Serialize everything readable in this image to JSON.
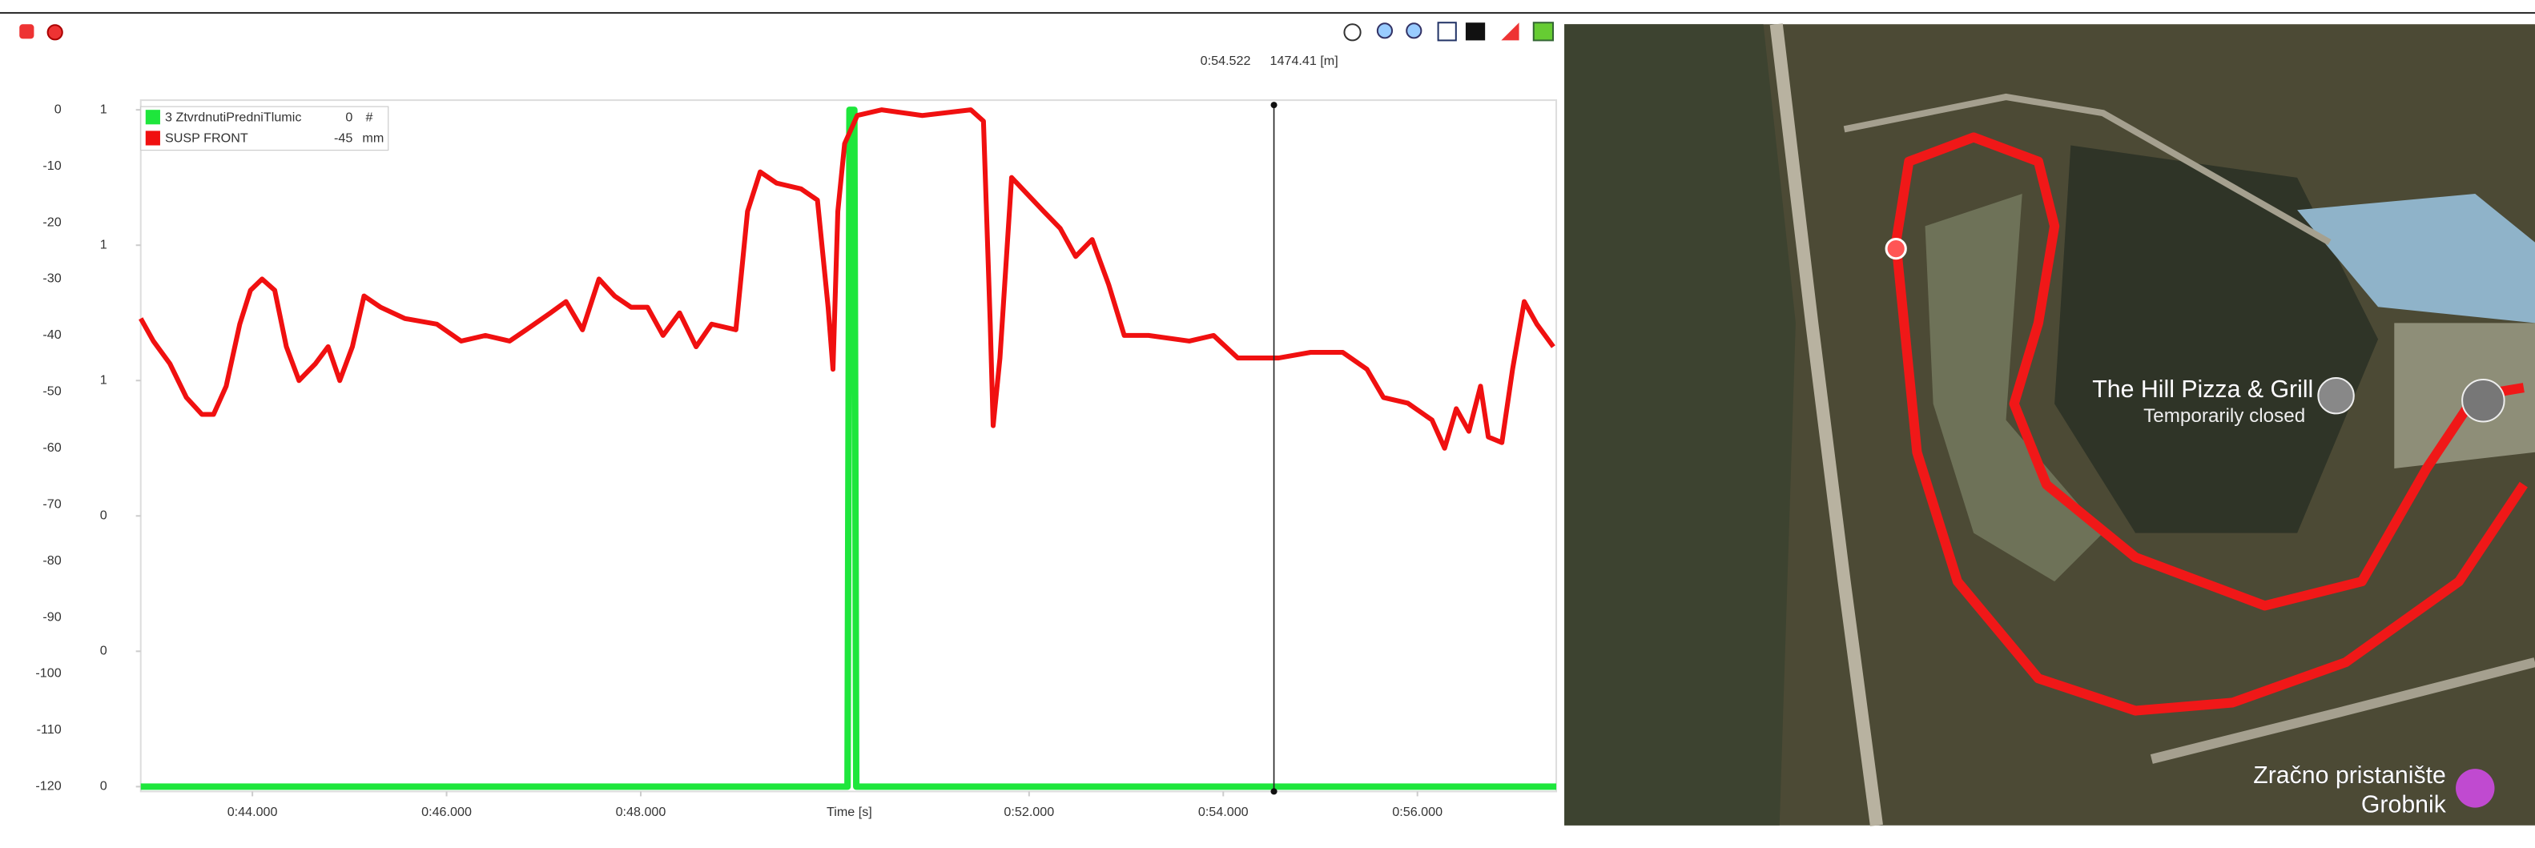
{
  "toolbar": {
    "cursor_time": {
      "value": 54.522,
      "label": "0:54.522"
    },
    "cursor_distance": "1474.41 [m]"
  },
  "chart_data": {
    "type": "line",
    "x_label": "Time [s]",
    "xlim": [
      42.85,
      57.43
    ],
    "xticks": [
      {
        "value": 44,
        "label": "0:44.000"
      },
      {
        "value": 46,
        "label": "0:46.000"
      },
      {
        "value": 48,
        "label": "0:48.000"
      },
      {
        "value": 52,
        "label": "0:52.000"
      },
      {
        "value": 54,
        "label": "0:54.000"
      },
      {
        "value": 56,
        "label": "0:56.000"
      }
    ],
    "ylim": [
      -120,
      0
    ],
    "yticks": [
      -120,
      -110,
      -100,
      -90,
      -80,
      -70,
      -60,
      -50,
      -40,
      -30,
      -20,
      -10,
      0
    ],
    "y2lim": [
      0,
      1
    ],
    "y2ticks": [
      {
        "value": 0,
        "label": "0"
      },
      {
        "value": 0.2,
        "label": "0"
      },
      {
        "value": 0.4,
        "label": "0"
      },
      {
        "value": 0.6,
        "label": "1"
      },
      {
        "value": 0.8,
        "label": "1"
      },
      {
        "value": 1,
        "label": "1"
      }
    ],
    "series": [
      {
        "name": "3 ZtvrdnutiPredniTlumic",
        "color": "#1ee63c",
        "axis": "y2",
        "readout": 0,
        "unit": "#",
        "x": [
          42.85,
          50.13,
          50.15,
          50.2,
          50.22,
          57.43
        ],
        "values": [
          0,
          0,
          1,
          1,
          0,
          0
        ]
      },
      {
        "name": "SUSP FRONT",
        "color": "#f01010",
        "readout": -45,
        "unit": "mm",
        "x": [
          42.85,
          42.98,
          43.15,
          43.32,
          43.48,
          43.6,
          43.73,
          43.87,
          43.98,
          44.1,
          44.23,
          44.35,
          44.48,
          44.65,
          44.78,
          44.9,
          45.03,
          45.15,
          45.32,
          45.57,
          45.9,
          46.15,
          46.4,
          46.65,
          46.82,
          47.07,
          47.23,
          47.4,
          47.57,
          47.73,
          47.9,
          48.07,
          48.23,
          48.4,
          48.57,
          48.73,
          48.98,
          49.1,
          49.23,
          49.4,
          49.65,
          49.82,
          49.93,
          49.98,
          50.03,
          50.1,
          50.23,
          50.48,
          50.9,
          51.4,
          51.53,
          51.6,
          51.63,
          51.7,
          51.82,
          51.93,
          52.15,
          52.32,
          52.48,
          52.65,
          52.82,
          52.98,
          53.23,
          53.65,
          53.9,
          54.15,
          54.57,
          54.9,
          55.23,
          55.48,
          55.65,
          55.9,
          56.15,
          56.28,
          56.4,
          56.53,
          56.65,
          56.73,
          56.87,
          56.98,
          57.1,
          57.23,
          57.4
        ],
        "values": [
          -37,
          -41,
          -45,
          -51,
          -54,
          -54,
          -49,
          -38,
          -32,
          -30,
          -32,
          -42,
          -48,
          -45,
          -42,
          -48,
          -42,
          -33,
          -35,
          -37,
          -38,
          -41,
          -40,
          -41,
          -39,
          -36,
          -34,
          -39,
          -30,
          -33,
          -35,
          -35,
          -40,
          -36,
          -42,
          -38,
          -39,
          -18,
          -11,
          -13,
          -14,
          -16,
          -35,
          -46,
          -18,
          -6,
          -1,
          0,
          -1,
          0,
          -2,
          -38,
          -56,
          -44,
          -12,
          -14,
          -18,
          -21,
          -26,
          -23,
          -31,
          -40,
          -40,
          -41,
          -40,
          -44,
          -44,
          -43,
          -43,
          -46,
          -51,
          -52,
          -55,
          -60,
          -53,
          -57,
          -49,
          -58,
          -59,
          -46,
          -34,
          -38,
          -42
        ]
      }
    ]
  },
  "map": {
    "place": "The Hill Pizza & Grill",
    "status": "Temporarily closed",
    "airport_line1": "Zračno pristanište",
    "airport_line2": "Grobnik"
  }
}
